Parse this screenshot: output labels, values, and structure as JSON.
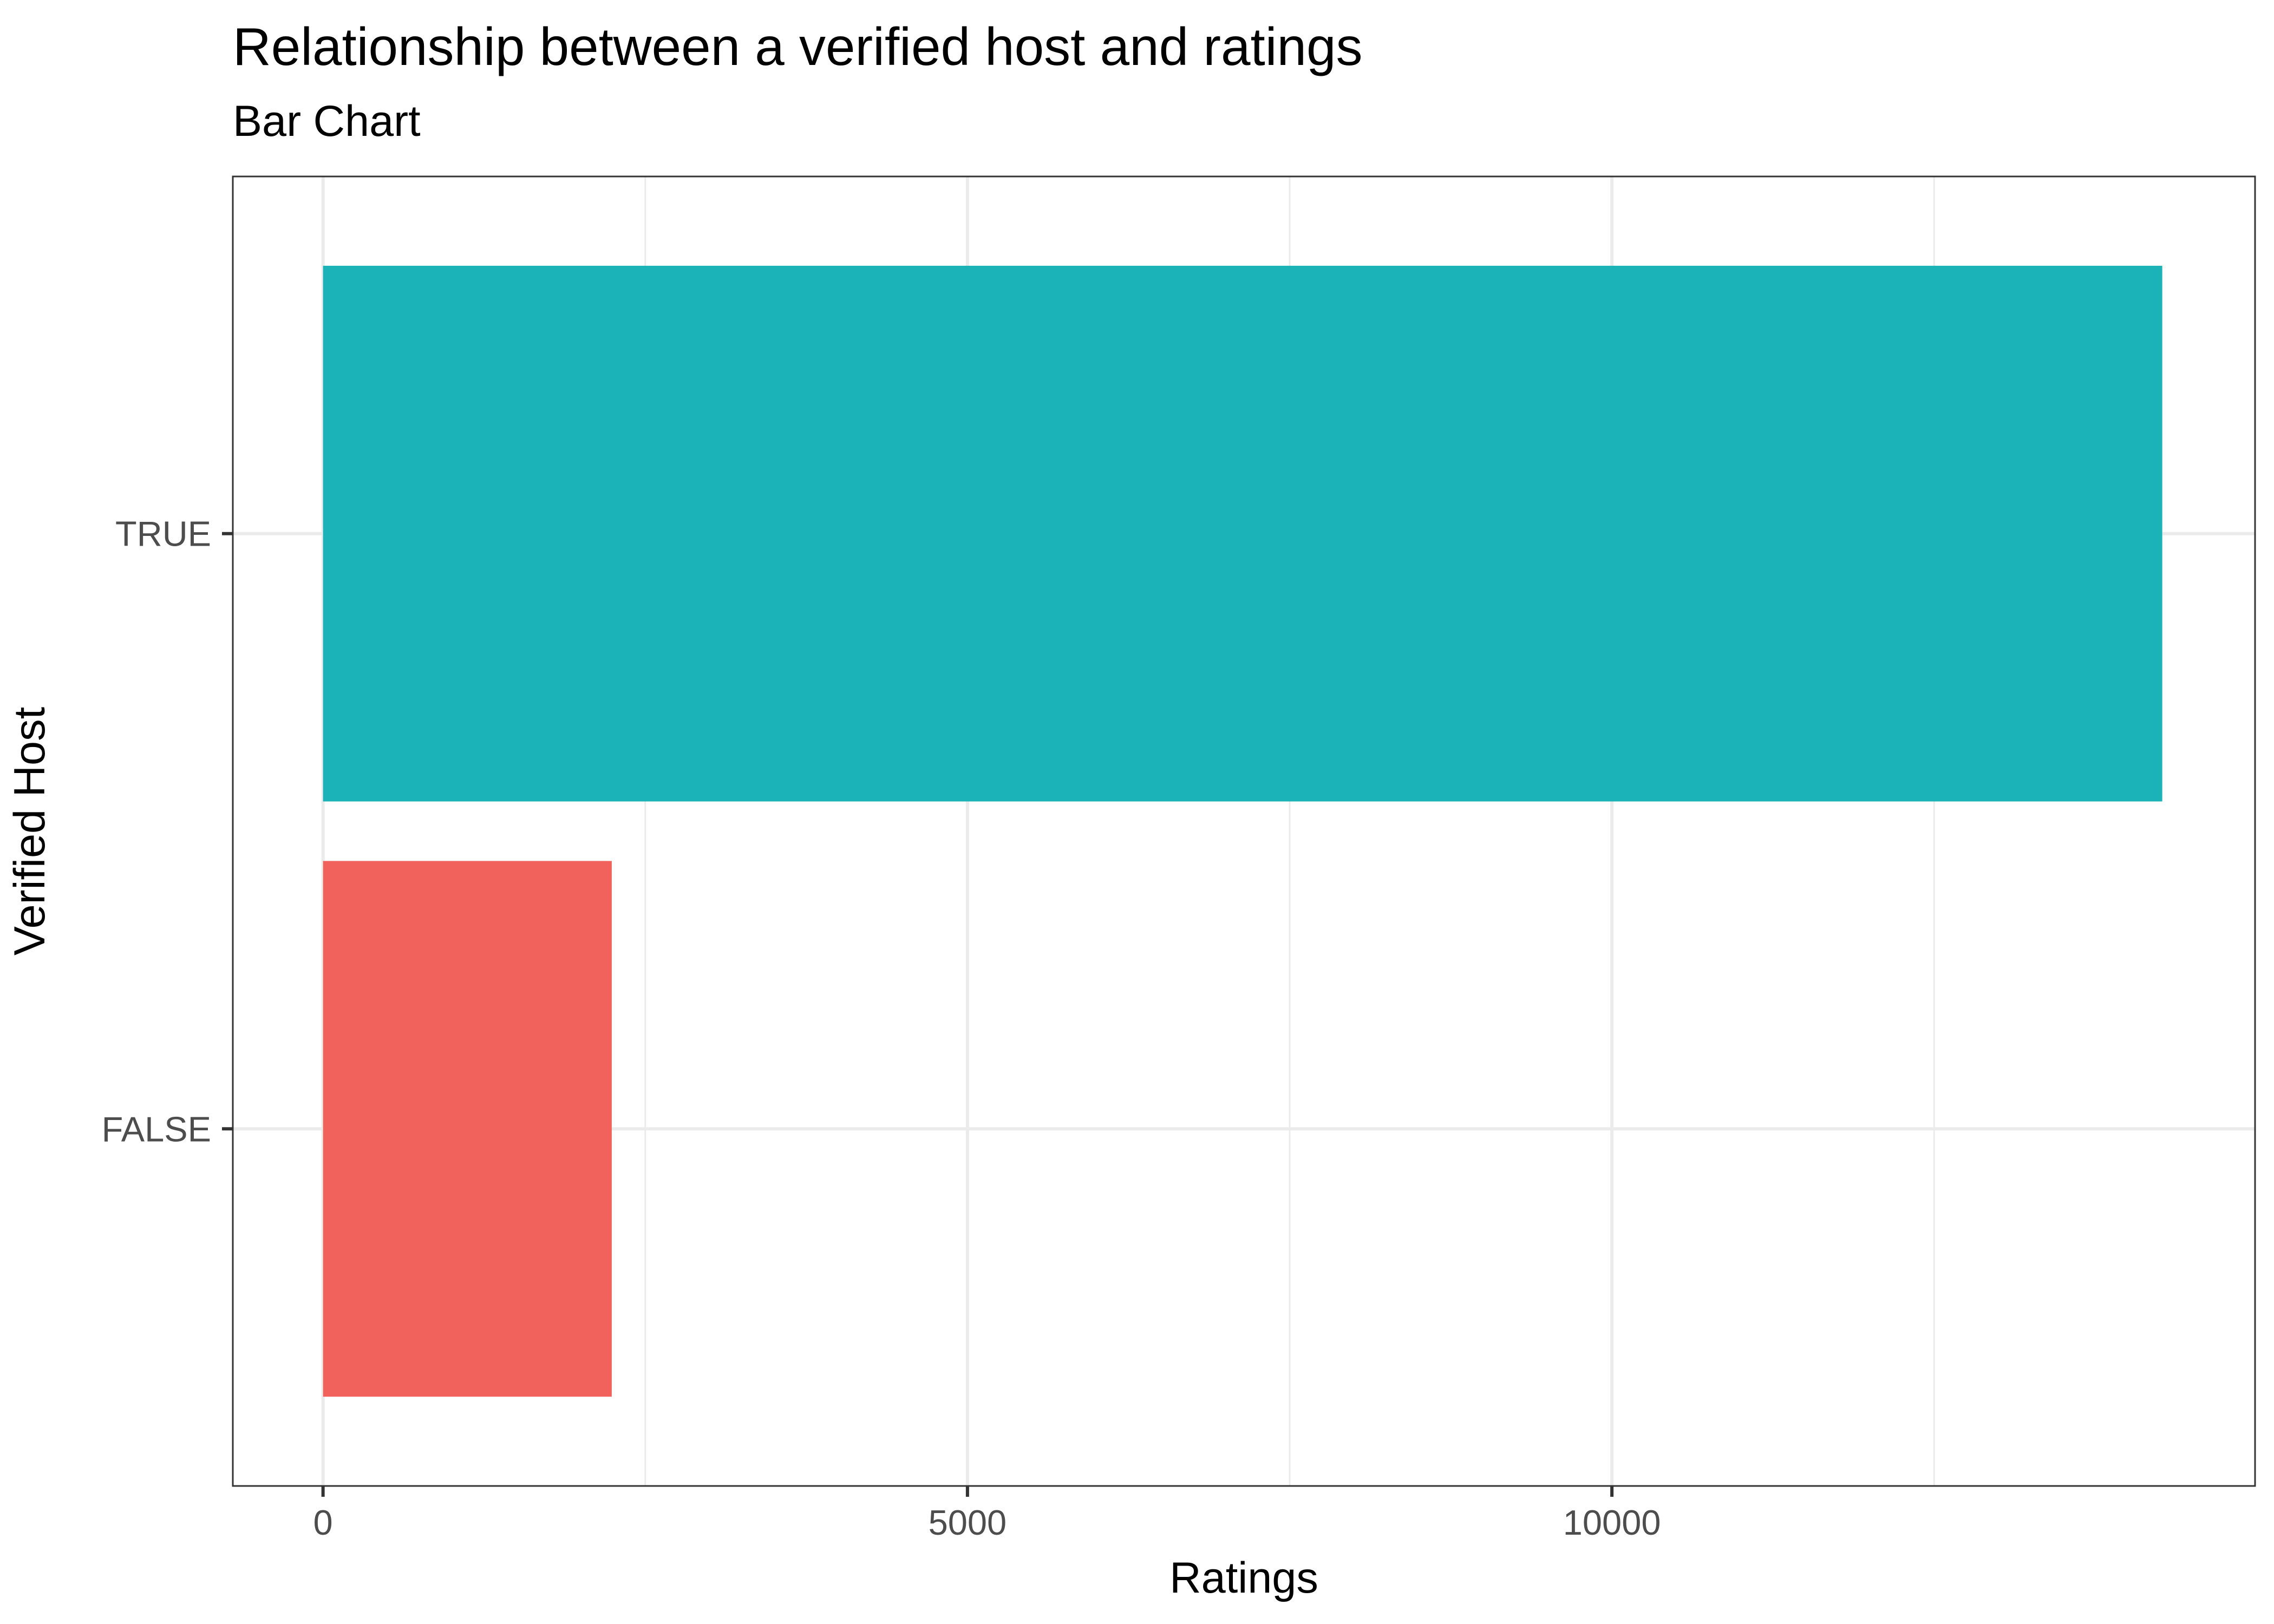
{
  "title": "Relationship between a verified host and ratings",
  "subtitle": "Bar Chart",
  "chart_data": {
    "type": "bar",
    "orientation": "horizontal",
    "title": "Relationship between a verified host and ratings",
    "subtitle": "Bar Chart",
    "xlabel": "Ratings",
    "ylabel": "Verified Host",
    "categories": [
      "FALSE",
      "TRUE"
    ],
    "values": [
      2240,
      14270
    ],
    "colors": [
      "#F2625C",
      "#1BB3B8"
    ],
    "xlim": [
      -700,
      14990
    ],
    "xticks": [
      0,
      5000,
      10000
    ],
    "xtick_labels": [
      "0",
      "5000",
      "10000"
    ],
    "grid": true,
    "legend": "none"
  }
}
